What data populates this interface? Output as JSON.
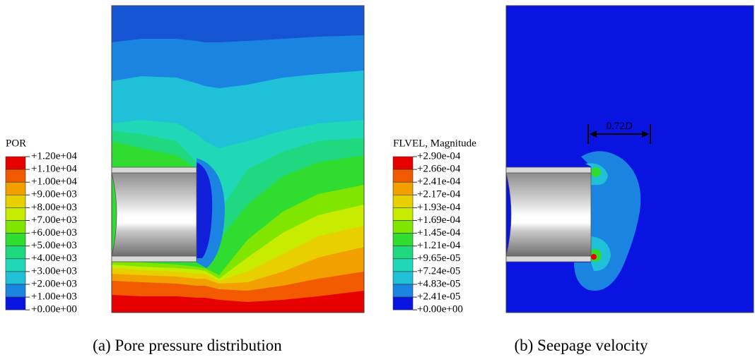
{
  "panels": [
    {
      "legend": {
        "title": "POR",
        "labels": [
          "+1.20e+04",
          "+1.10e+04",
          "+1.00e+04",
          "+9.00e+03",
          "+8.00e+03",
          "+7.00e+03",
          "+6.00e+03",
          "+5.00e+03",
          "+4.00e+03",
          "+3.00e+03",
          "+2.00e+03",
          "+1.00e+03",
          "+0.00e+00"
        ]
      },
      "caption": "(a) Pore pressure distribution"
    },
    {
      "legend": {
        "title": "FLVEL, Magnitude",
        "labels": [
          "+2.90e-04",
          "+2.66e-04",
          "+2.41e-04",
          "+2.17e-04",
          "+1.93e-04",
          "+1.69e-04",
          "+1.45e-04",
          "+1.21e-04",
          "+9.65e-05",
          "+7.24e-05",
          "+4.83e-05",
          "+2.41e-05",
          "+0.00e+00"
        ]
      },
      "annotation": {
        "number": "0.72",
        "symbol": "D"
      },
      "caption": "(b) Seepage velocity"
    }
  ]
}
